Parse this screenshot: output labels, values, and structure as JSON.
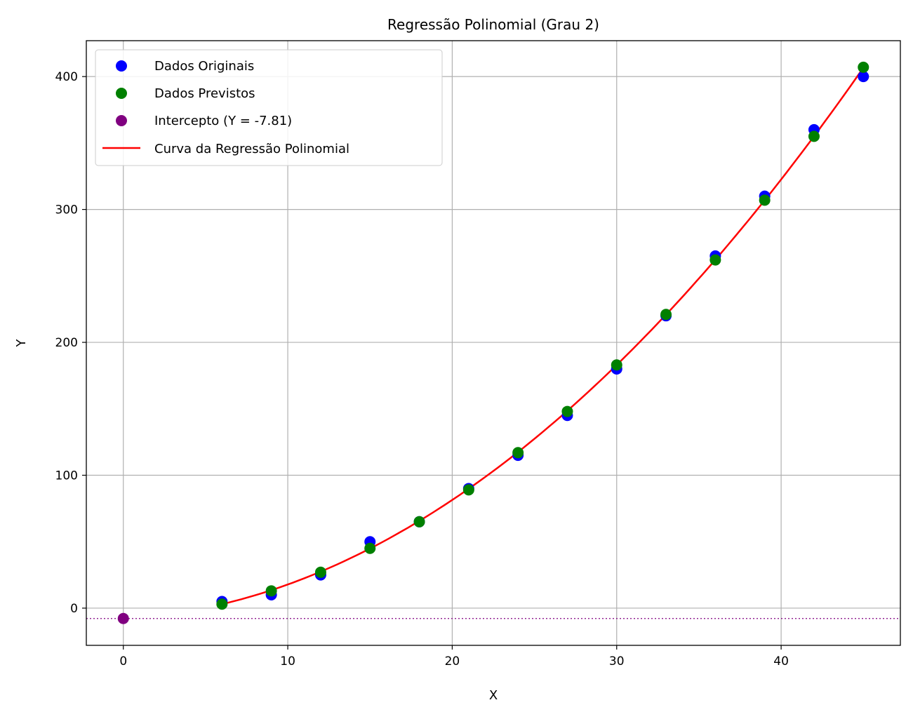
{
  "chart_data": {
    "type": "scatter",
    "title": "Regressão Polinomial (Grau 2)",
    "xlabel": "X",
    "ylabel": "Y",
    "xlim": [
      -2.25,
      47.25
    ],
    "ylim": [
      -28,
      427
    ],
    "xticks": [
      0,
      10,
      20,
      30,
      40
    ],
    "yticks": [
      0,
      100,
      200,
      300,
      400
    ],
    "grid": true,
    "legend_position": "top-left",
    "colors": {
      "original": "#0000ff",
      "predicted": "#008000",
      "intercept": "#800080",
      "curve": "#ff0000",
      "grid": "#b0b0b0"
    },
    "series": [
      {
        "name": "Dados Originais",
        "kind": "scatter",
        "x": [
          6,
          9,
          12,
          15,
          18,
          21,
          24,
          27,
          30,
          33,
          36,
          39,
          42,
          45
        ],
        "y": [
          5,
          10,
          25,
          50,
          65,
          90,
          115,
          145,
          180,
          220,
          265,
          310,
          360,
          400
        ]
      },
      {
        "name": "Dados Previstos",
        "kind": "scatter",
        "x": [
          6,
          9,
          12,
          15,
          18,
          21,
          24,
          27,
          30,
          33,
          36,
          39,
          42,
          45
        ],
        "y": [
          3,
          13,
          27,
          45,
          65,
          89,
          117,
          148,
          183,
          221,
          262,
          307,
          355,
          407
        ]
      },
      {
        "name": "Intercepto (Y = -7.81)",
        "kind": "scatter",
        "x": [
          0
        ],
        "y": [
          -7.81
        ]
      },
      {
        "name": "Curva da Regressão Polinomial",
        "kind": "line",
        "coefficients": {
          "a": 0.19,
          "b": 0.66,
          "c": -7.81
        },
        "x_range": [
          6,
          45
        ]
      }
    ],
    "reference_lines": [
      {
        "kind": "horizontal",
        "y": -7.81,
        "style": "dotted",
        "color": "#800080"
      }
    ]
  }
}
